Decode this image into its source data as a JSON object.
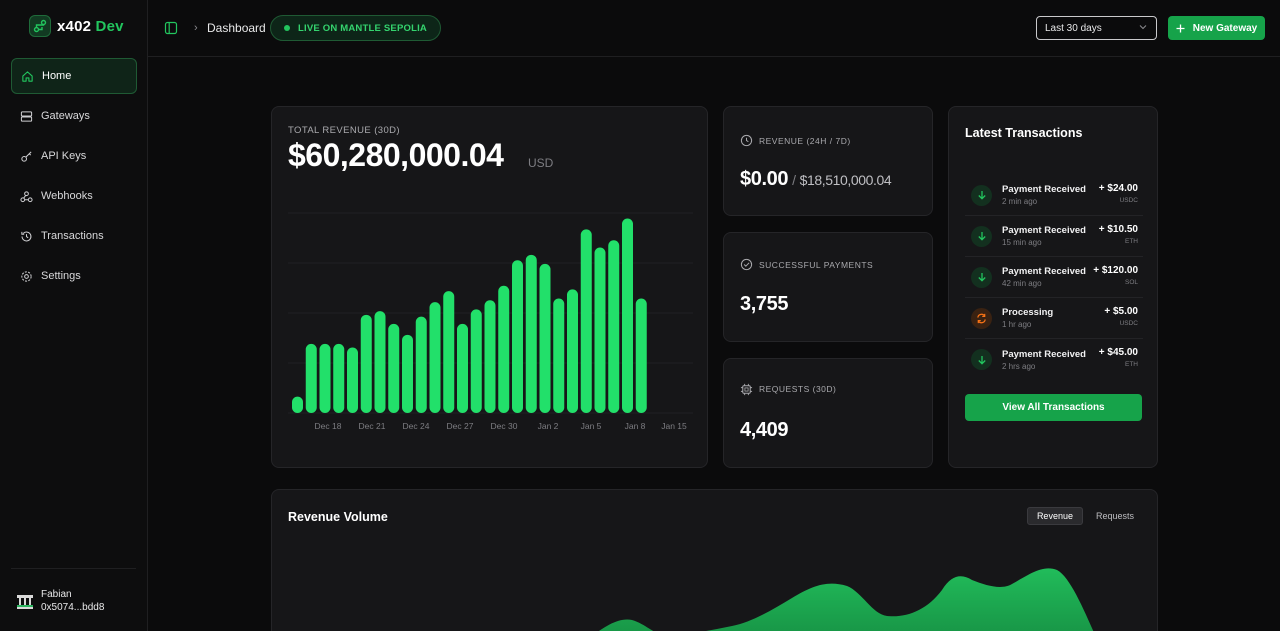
{
  "app": {
    "name": "x402",
    "name_accent": "Dev"
  },
  "sidebar": {
    "items": [
      {
        "label": "Home",
        "icon": "home-icon"
      },
      {
        "label": "Gateways",
        "icon": "server-icon"
      },
      {
        "label": "API Keys",
        "icon": "key-icon"
      },
      {
        "label": "Webhooks",
        "icon": "webhook-icon"
      },
      {
        "label": "Transactions",
        "icon": "history-icon"
      },
      {
        "label": "Settings",
        "icon": "gear-icon"
      }
    ],
    "user": {
      "name": "Fabian",
      "address": "0x5074...bdd8"
    }
  },
  "header": {
    "breadcrumb": "Dashboard",
    "network_badge": "LIVE ON MANTLE SEPOLIA",
    "range": "Last 30 days",
    "new_gateway": "New Gateway"
  },
  "revenue": {
    "label": "TOTAL REVENUE (30D)",
    "value": "$60,280,000.04",
    "unit": "USD"
  },
  "chart_data": {
    "type": "bar",
    "title": "",
    "xlabel": "",
    "ylabel": "",
    "tick_labels": [
      "Dec 18",
      "Dec 21",
      "Dec 24",
      "Dec 27",
      "Dec 30",
      "Jan 2",
      "Jan 5",
      "Jan 8",
      "Jan 15"
    ],
    "values": [
      9,
      38,
      38,
      38,
      36,
      54,
      56,
      49,
      43,
      53,
      61,
      67,
      49,
      57,
      62,
      70,
      84,
      87,
      82,
      63,
      68,
      101,
      91,
      95,
      107,
      63
    ],
    "ylim": [
      0,
      110
    ],
    "grid": true
  },
  "stats": {
    "revenue": {
      "label": "REVENUE (24H / 7D)",
      "primary": "$0.00",
      "sep": "/",
      "secondary": "$18,510,000.04"
    },
    "payments": {
      "label": "SUCCESSFUL PAYMENTS",
      "value": "3,755"
    },
    "requests": {
      "label": "REQUESTS (30D)",
      "value": "4,409"
    }
  },
  "transactions": {
    "title": "Latest Transactions",
    "items": [
      {
        "name": "Payment Received",
        "time": "2 min ago",
        "amount": "+ $24.00",
        "currency": "USDC",
        "status": "received"
      },
      {
        "name": "Payment Received",
        "time": "15 min ago",
        "amount": "+ $10.50",
        "currency": "ETH",
        "status": "received"
      },
      {
        "name": "Payment Received",
        "time": "42 min ago",
        "amount": "+ $120.00",
        "currency": "SOL",
        "status": "received"
      },
      {
        "name": "Processing",
        "time": "1 hr ago",
        "amount": "+ $5.00",
        "currency": "USDC",
        "status": "processing"
      },
      {
        "name": "Payment Received",
        "time": "2 hrs ago",
        "amount": "+ $45.00",
        "currency": "ETH",
        "status": "received"
      }
    ],
    "view_all": "View All Transactions"
  },
  "volume": {
    "title": "Revenue Volume",
    "tabs": [
      "Revenue",
      "Requests"
    ],
    "active_tab": "Revenue"
  },
  "colors": {
    "accent": "#22c55e",
    "bar": "#22e06a",
    "processing": "#f97316"
  }
}
